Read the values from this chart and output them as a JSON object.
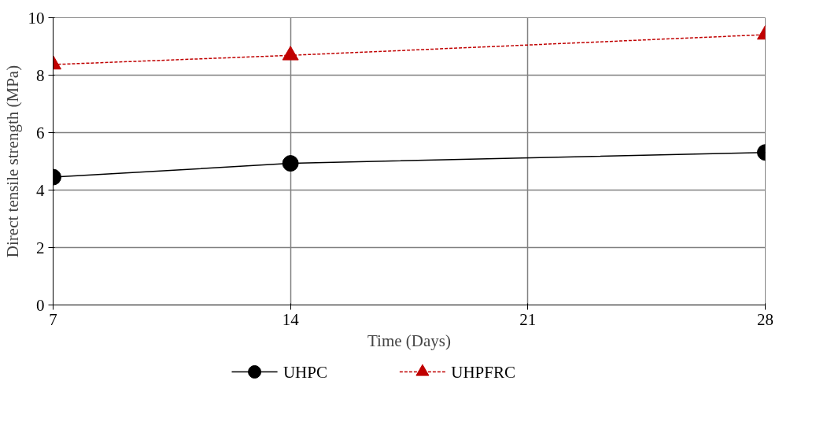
{
  "chart_data": {
    "type": "line",
    "xlabel": "Time (Days)",
    "ylabel": "Direct tensile strength (MPa)",
    "x": [
      7,
      14,
      28
    ],
    "xlim": [
      7,
      28
    ],
    "xticks": [
      7,
      14,
      21,
      28
    ],
    "ylim": [
      0,
      10
    ],
    "yticks": [
      0,
      2,
      4,
      6,
      8,
      10
    ],
    "grid": true,
    "legend": "bottom",
    "series": [
      {
        "name": "UHPC",
        "color": "#000000",
        "marker": "circle",
        "line_style": "solid",
        "values": [
          4.45,
          4.93,
          5.31
        ]
      },
      {
        "name": "UHPFRC",
        "color": "#c00000",
        "marker": "triangle",
        "line_style": "dashed",
        "values": [
          8.37,
          8.69,
          9.41
        ]
      }
    ]
  }
}
